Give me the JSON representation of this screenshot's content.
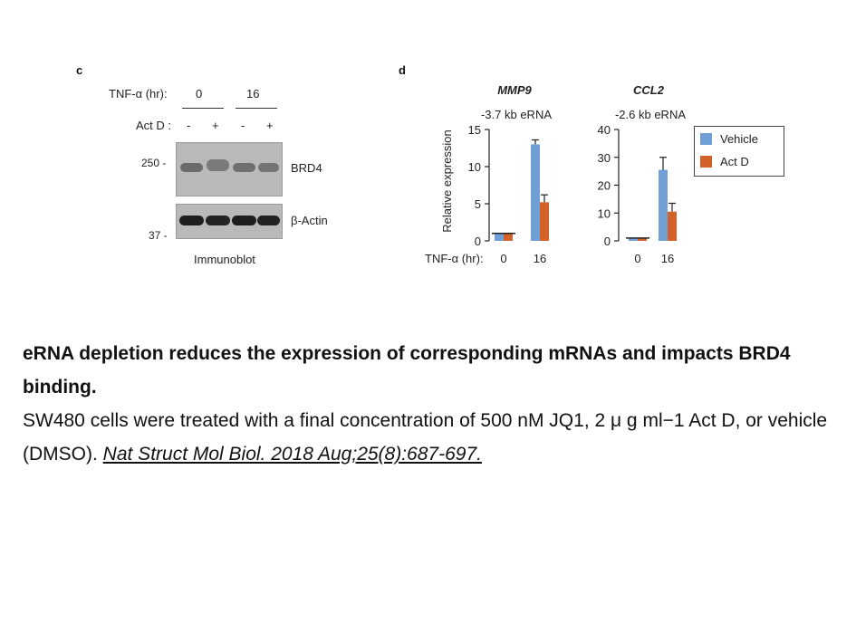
{
  "panel_c": {
    "letter": "c",
    "tnf_label": "TNF-α (hr):",
    "time_0": "0",
    "time_16": "16",
    "actd_label": "Act D :",
    "actd_signs": [
      "-",
      "+",
      "-",
      "+"
    ],
    "mw_250": "250 -",
    "mw_37": "37 -",
    "band_brd4": "BRD4",
    "band_actin": "β-Actin",
    "footer": "Immunoblot"
  },
  "panel_d": {
    "letter": "d",
    "ylabel": "Relative expression",
    "tnf_label": "TNF-α (hr):",
    "legend": [
      {
        "name": "Vehicle",
        "color": "#6f9fd4"
      },
      {
        "name": "Act D",
        "color": "#d2622a"
      }
    ]
  },
  "chart_data": [
    {
      "type": "bar",
      "title": "MMP9",
      "subtitle": "-3.7 kb eRNA",
      "ylabel": "Relative expression",
      "categories": [
        "0",
        "16"
      ],
      "ylim": [
        0,
        15
      ],
      "yticks": [
        0,
        5,
        10,
        15
      ],
      "series": [
        {
          "name": "Vehicle",
          "color": "#6f9fd4",
          "values": [
            1,
            13
          ],
          "errors": [
            0,
            0.6
          ]
        },
        {
          "name": "Act D",
          "color": "#d2622a",
          "values": [
            1,
            5.2
          ],
          "errors": [
            0,
            1.0
          ]
        }
      ]
    },
    {
      "type": "bar",
      "title": "CCL2",
      "subtitle": "-2.6 kb eRNA",
      "ylabel": "",
      "categories": [
        "0",
        "16"
      ],
      "ylim": [
        0,
        40
      ],
      "yticks": [
        0,
        10,
        20,
        30,
        40
      ],
      "series": [
        {
          "name": "Vehicle",
          "color": "#6f9fd4",
          "values": [
            1,
            25.5
          ],
          "errors": [
            0,
            4.5
          ]
        },
        {
          "name": "Act D",
          "color": "#d2622a",
          "values": [
            1,
            10.5
          ],
          "errors": [
            0,
            3.0
          ]
        }
      ]
    }
  ],
  "caption": {
    "title": "eRNA depletion reduces the expression of corresponding mRNAs and impacts BRD4 binding.",
    "body": "SW480 cells were treated with a final concentration of 500 nM JQ1, 2 μ g ml−1 Act D, or vehicle (DMSO).",
    "citation": "Nat Struct Mol Biol. 2018 Aug;25(8):687-697."
  }
}
